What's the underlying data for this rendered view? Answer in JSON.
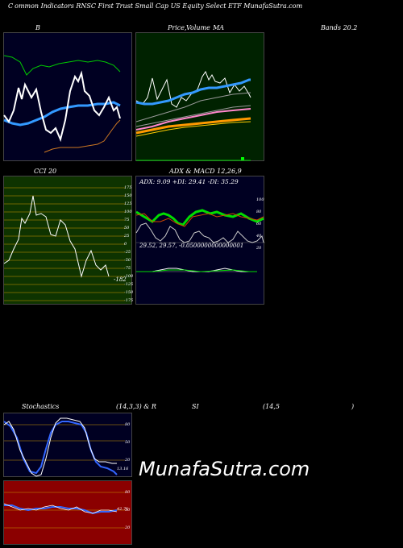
{
  "header": {
    "prefix": "C",
    "title": "ommon  Indicators RNSC First Trust Small Cap US Equity Select ETF MunafaSutra.com"
  },
  "panels": {
    "bollinger": {
      "label": "B",
      "bands_label": "Bands 20.2"
    },
    "price": {
      "label_price": "Price,",
      "label_volume": "Volume",
      "label_ma": "MA"
    },
    "cci": {
      "label": "CCI 20",
      "value": "-182",
      "axis": [
        "175",
        "150",
        "125",
        "100",
        "75",
        "50",
        "25",
        "0",
        "-25",
        "-50",
        "-75",
        "-100",
        "-125",
        "-150",
        "-175"
      ]
    },
    "adx": {
      "title": "ADX  & MACD 12,26,9",
      "values": "ADX: 9.09  +DI: 29.41 -DI: 35.29",
      "macd_values": "29.52,  29.57,  -0.0500000000000001",
      "axis": [
        "100",
        "80",
        "60",
        "40",
        "20"
      ]
    },
    "stochastics": {
      "label": "Stochastics",
      "params": "(14,3,3) & R",
      "current": "13.16",
      "axis": [
        "80",
        "50",
        "20"
      ]
    },
    "rsi": {
      "label": "SI",
      "params": "(14,5",
      "close_paren": ")",
      "current": "42.71",
      "axis": [
        "80",
        "50",
        "20"
      ]
    }
  },
  "watermark": "MunafaSutra.com",
  "colors": {
    "price_bg": "#002200",
    "cci_bg": "#0e3300",
    "adx_bg": "#000022",
    "rsi_bg": "#8b0000",
    "bb_bg": "#000022"
  }
}
